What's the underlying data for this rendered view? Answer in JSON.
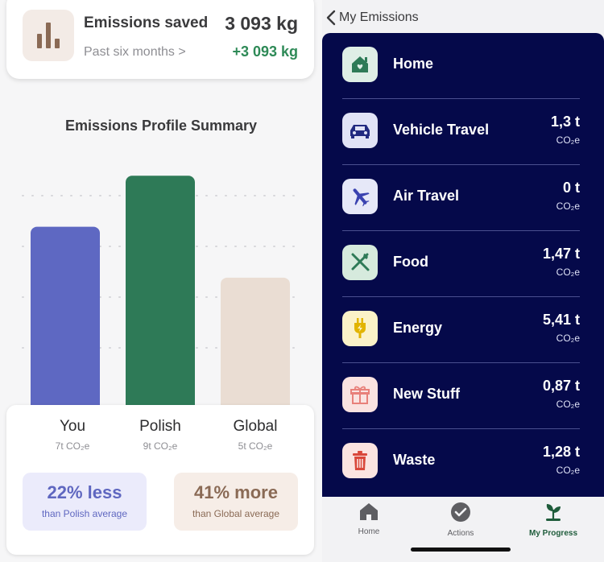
{
  "left": {
    "saved_card": {
      "title": "Emissions saved",
      "subtitle": "Past six months >",
      "value": "3 093 kg",
      "delta": "+3 093 kg",
      "icon": "bar-chart-icon"
    },
    "summary_title": "Emissions Profile Summary",
    "comparisons": [
      {
        "big": "22% less",
        "small": "than Polish average"
      },
      {
        "big": "41% more",
        "small": "than Global average"
      }
    ]
  },
  "chart_data": {
    "type": "bar",
    "categories": [
      "You",
      "Polish",
      "Global"
    ],
    "values": [
      7,
      9,
      5
    ],
    "value_labels": [
      "7t CO₂e",
      "9t CO₂e",
      "5t CO₂e"
    ],
    "unit": "t CO₂e",
    "colors": [
      "#5e68c2",
      "#2e7a57",
      "#eaddd3"
    ],
    "ylim": [
      0,
      9.8
    ],
    "grid": true
  },
  "right": {
    "nav_back_label": "My Emissions",
    "categories": [
      {
        "label": "Home",
        "value": "",
        "unit": "",
        "icon": "house-icon",
        "icon_bg": "#dfeee6"
      },
      {
        "label": "Vehicle Travel",
        "value": "1,3 t",
        "unit": "CO₂e",
        "icon": "car-icon",
        "icon_bg": "#e1e3f6"
      },
      {
        "label": "Air Travel",
        "value": "0 t",
        "unit": "CO₂e",
        "icon": "airplane-icon",
        "icon_bg": "#e6e8f8"
      },
      {
        "label": "Food",
        "value": "1,47 t",
        "unit": "CO₂e",
        "icon": "fork-knife-icon",
        "icon_bg": "#d6eadd"
      },
      {
        "label": "Energy",
        "value": "5,41 t",
        "unit": "CO₂e",
        "icon": "plug-icon",
        "icon_bg": "#fbf2c8"
      },
      {
        "label": "New Stuff",
        "value": "0,87 t",
        "unit": "CO₂e",
        "icon": "gift-icon",
        "icon_bg": "#fae3e1"
      },
      {
        "label": "Waste",
        "value": "1,28 t",
        "unit": "CO₂e",
        "icon": "trash-icon",
        "icon_bg": "#fbe4e1"
      }
    ],
    "tabs": [
      {
        "label": "Home",
        "icon": "house-icon"
      },
      {
        "label": "Actions",
        "icon": "check-circle-icon"
      },
      {
        "label": "My Progress",
        "icon": "plant-icon",
        "active": true
      }
    ]
  }
}
